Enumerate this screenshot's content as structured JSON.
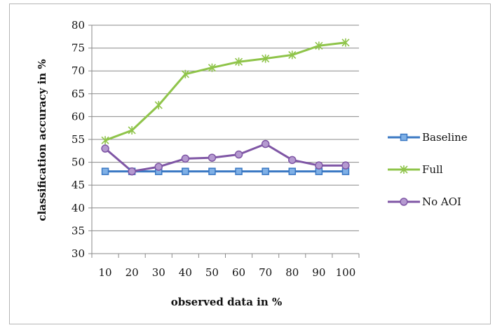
{
  "chart_data": {
    "type": "line",
    "x": [
      "10",
      "20",
      "30",
      "40",
      "50",
      "60",
      "70",
      "80",
      "90",
      "100"
    ],
    "xlabel": "observed data in %",
    "ylabel": "classification accuracy in %",
    "ylim": [
      30,
      80
    ],
    "yticks": [
      "30",
      "35",
      "40",
      "45",
      "50",
      "55",
      "60",
      "65",
      "70",
      "75",
      "80"
    ],
    "grid": "horizontal",
    "legend_position": "right",
    "series": [
      {
        "name": "Baseline",
        "color": "#3a78c3",
        "marker": "square",
        "values": [
          48,
          48,
          48,
          48,
          48,
          48,
          48,
          48,
          48,
          48
        ]
      },
      {
        "name": "Full",
        "color": "#8fc44a",
        "marker": "star",
        "values": [
          54.8,
          57,
          62.5,
          69.3,
          70.7,
          72,
          72.7,
          73.5,
          75.5,
          76.2
        ]
      },
      {
        "name": "No AOI",
        "color": "#7f56a5",
        "marker": "circle",
        "values": [
          53,
          48,
          49,
          50.8,
          51,
          51.7,
          54,
          50.5,
          49.3,
          49.3
        ]
      }
    ]
  }
}
